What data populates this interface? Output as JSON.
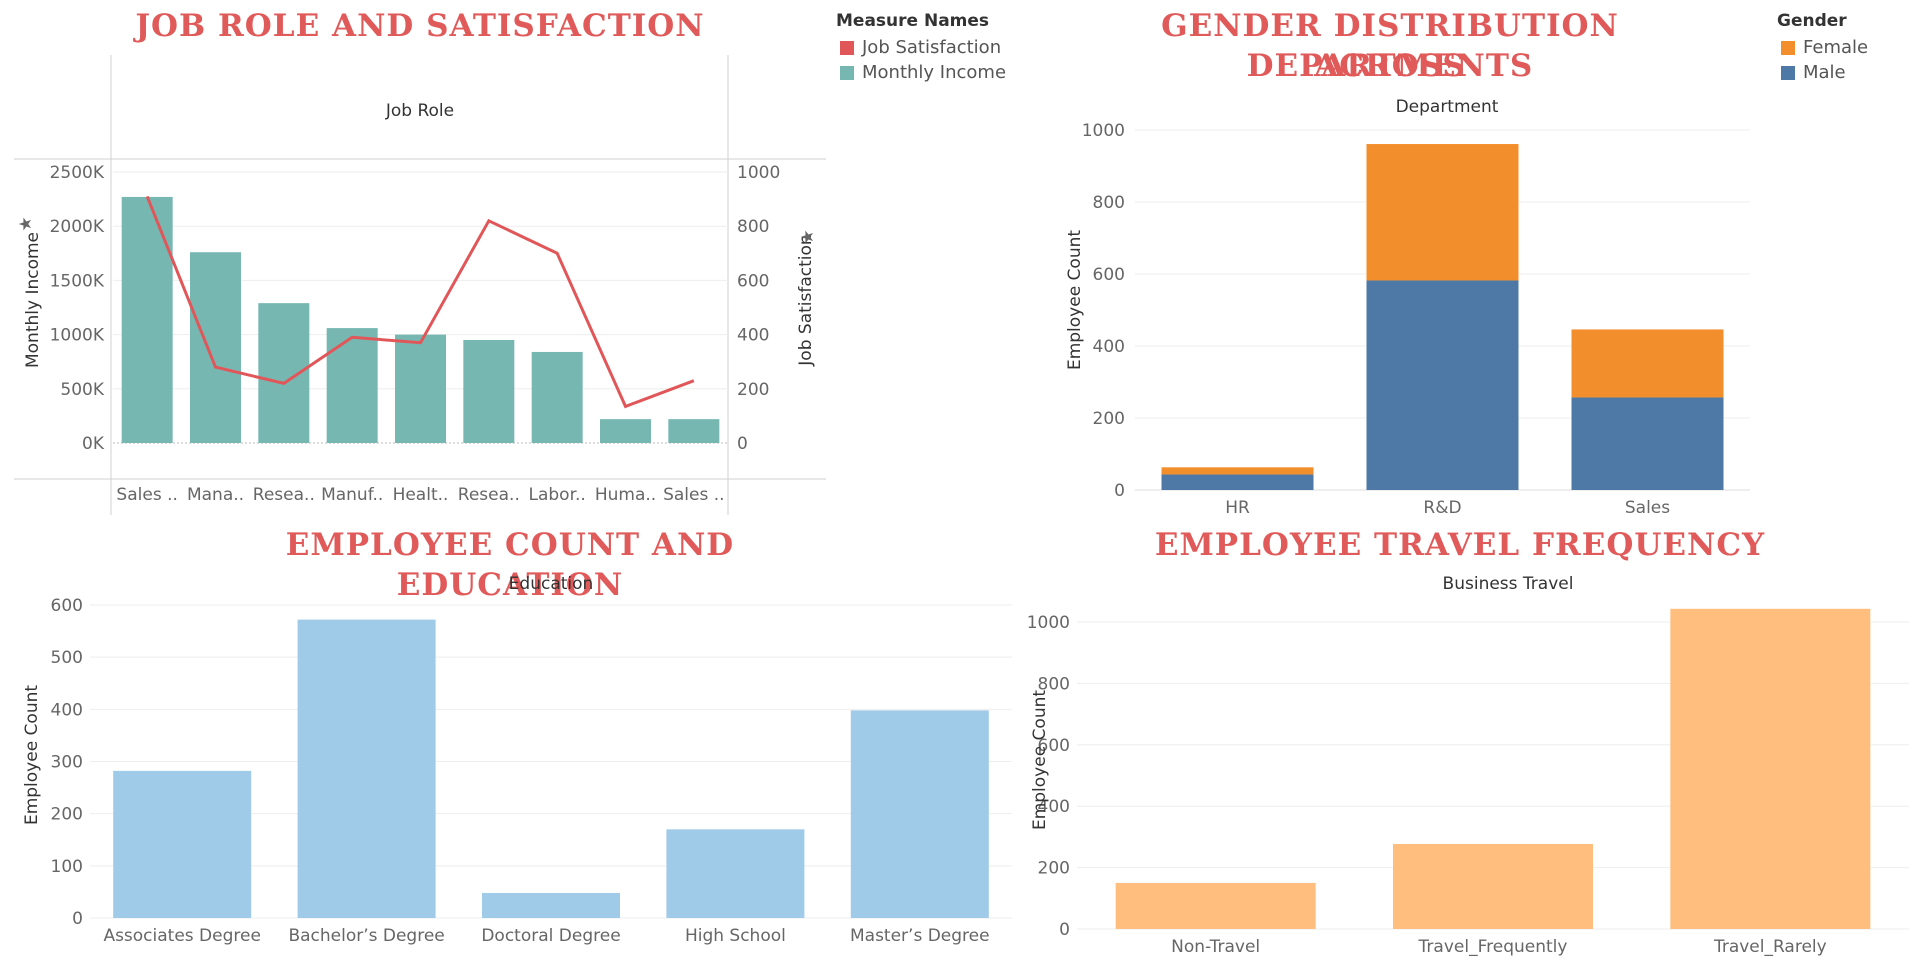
{
  "titles": {
    "job_role": "JOB ROLE AND SATISFACTION",
    "gender_line1": "GENDER DISTRIBUTION ACROSS",
    "gender_line2": "DEPARTMENTS",
    "education": "EMPLOYEE COUNT AND EDUCATION",
    "travel": "EMPLOYEE TRAVEL FREQUENCY"
  },
  "legends": {
    "measure": {
      "title": "Measure Names",
      "items": [
        {
          "label": "Job Satisfaction",
          "color": "#e15759"
        },
        {
          "label": "Monthly Income",
          "color": "#76b7b2"
        }
      ]
    },
    "gender": {
      "title": "Gender",
      "items": [
        {
          "label": "Female",
          "color": "#f28e2b"
        },
        {
          "label": "Male",
          "color": "#4e79a7"
        }
      ]
    }
  },
  "chart_data": [
    {
      "type": "bar",
      "header": "Job Role",
      "categories": [
        "Sales ..",
        "Mana..",
        "Resea..",
        "Manuf..",
        "Healt..",
        "Resea..",
        "Labor..",
        "Huma..",
        "Sales .."
      ],
      "series": [
        {
          "name": "Monthly Income",
          "type": "bar",
          "color": "#76b7b2",
          "values": [
            2270,
            1760,
            1290,
            1060,
            1000,
            950,
            840,
            220,
            220
          ]
        },
        {
          "name": "Job Satisfaction",
          "type": "line",
          "color": "#e15759",
          "values": [
            910,
            280,
            220,
            390,
            370,
            820,
            700,
            135,
            230
          ]
        }
      ],
      "ylabel": "Monthly Income",
      "y2label": "Job Satisfaction",
      "ylim": [
        0,
        2500
      ],
      "y2lim": [
        0,
        1000
      ],
      "yticks": [
        "0K",
        "500K",
        "1000K",
        "1500K",
        "2000K",
        "2500K"
      ],
      "y2ticks": [
        "0",
        "200",
        "400",
        "600",
        "800",
        "1000"
      ]
    },
    {
      "type": "bar",
      "stacked": true,
      "header": "Department",
      "categories": [
        "HR",
        "R&D",
        "Sales"
      ],
      "series": [
        {
          "name": "Male",
          "color": "#4e79a7",
          "values": [
            43,
            582,
            257
          ]
        },
        {
          "name": "Female",
          "color": "#f28e2b",
          "values": [
            20,
            379,
            189
          ]
        }
      ],
      "ylabel": "Employee Count",
      "ylim": [
        0,
        1000
      ],
      "yticks": [
        "0",
        "200",
        "400",
        "600",
        "800",
        "1000"
      ]
    },
    {
      "type": "bar",
      "header": "Education",
      "categories": [
        "Associates Degree",
        "Bachelor’s Degree",
        "Doctoral Degree",
        "High School",
        "Master’s Degree"
      ],
      "values": [
        282,
        572,
        48,
        170,
        398
      ],
      "color": "#a0cbe8",
      "ylabel": "Employee Count",
      "ylim": [
        0,
        600
      ],
      "yticks": [
        "0",
        "100",
        "200",
        "300",
        "400",
        "500",
        "600"
      ]
    },
    {
      "type": "bar",
      "header": "Business Travel",
      "categories": [
        "Non-Travel",
        "Travel_Frequently",
        "Travel_Rarely"
      ],
      "values": [
        150,
        277,
        1043
      ],
      "color": "#ffbe7d",
      "ylabel": "Employee Count",
      "ylim": [
        0,
        1000
      ],
      "yticks": [
        "0",
        "200",
        "400",
        "600",
        "800",
        "1000"
      ]
    }
  ]
}
